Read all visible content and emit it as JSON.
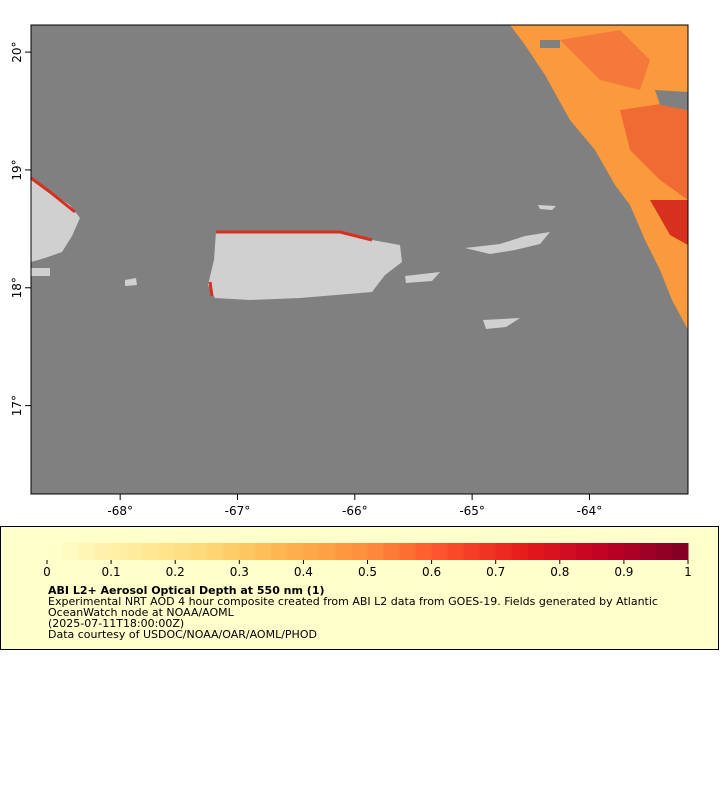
{
  "map": {
    "xlim": [
      -68.76,
      -63.16
    ],
    "ylim": [
      16.25,
      20.23
    ],
    "xticks": [
      {
        "value": -68,
        "label": "-68°"
      },
      {
        "value": -67,
        "label": "-67°"
      },
      {
        "value": -66,
        "label": "-66°"
      },
      {
        "value": -65,
        "label": "-65°"
      },
      {
        "value": -64,
        "label": "-64°"
      }
    ],
    "yticks": [
      {
        "value": 20,
        "label": "20°"
      },
      {
        "value": 19,
        "label": "19°"
      },
      {
        "value": 18,
        "label": "18°"
      },
      {
        "value": 17,
        "label": "17°"
      }
    ]
  },
  "colorbar": {
    "lim": [
      0,
      1
    ],
    "ticks": [
      0,
      0.1,
      0.2,
      0.3,
      0.4,
      0.5,
      0.6,
      0.7,
      0.8,
      0.9,
      1
    ],
    "colors": [
      "#ffffcc",
      "#ffeda0",
      "#fed976",
      "#feb24c",
      "#fd8d3c",
      "#fc4e2a",
      "#e31a1c",
      "#bd0026",
      "#800026"
    ]
  },
  "legend": {
    "title": "ABI L2+ Aerosol Optical Depth at 550 nm (1)",
    "lines": [
      "Experimental NRT AOD 4 hour composite created from ABI L2 data from GOES-19. Fields generated by Atlantic",
      "OceanWatch node at NOAA/AOML",
      "(2025-07-11T18:00:00Z)",
      "Data courtesy of USDOC/NOAA/OAR/AOML/PHOD"
    ]
  }
}
